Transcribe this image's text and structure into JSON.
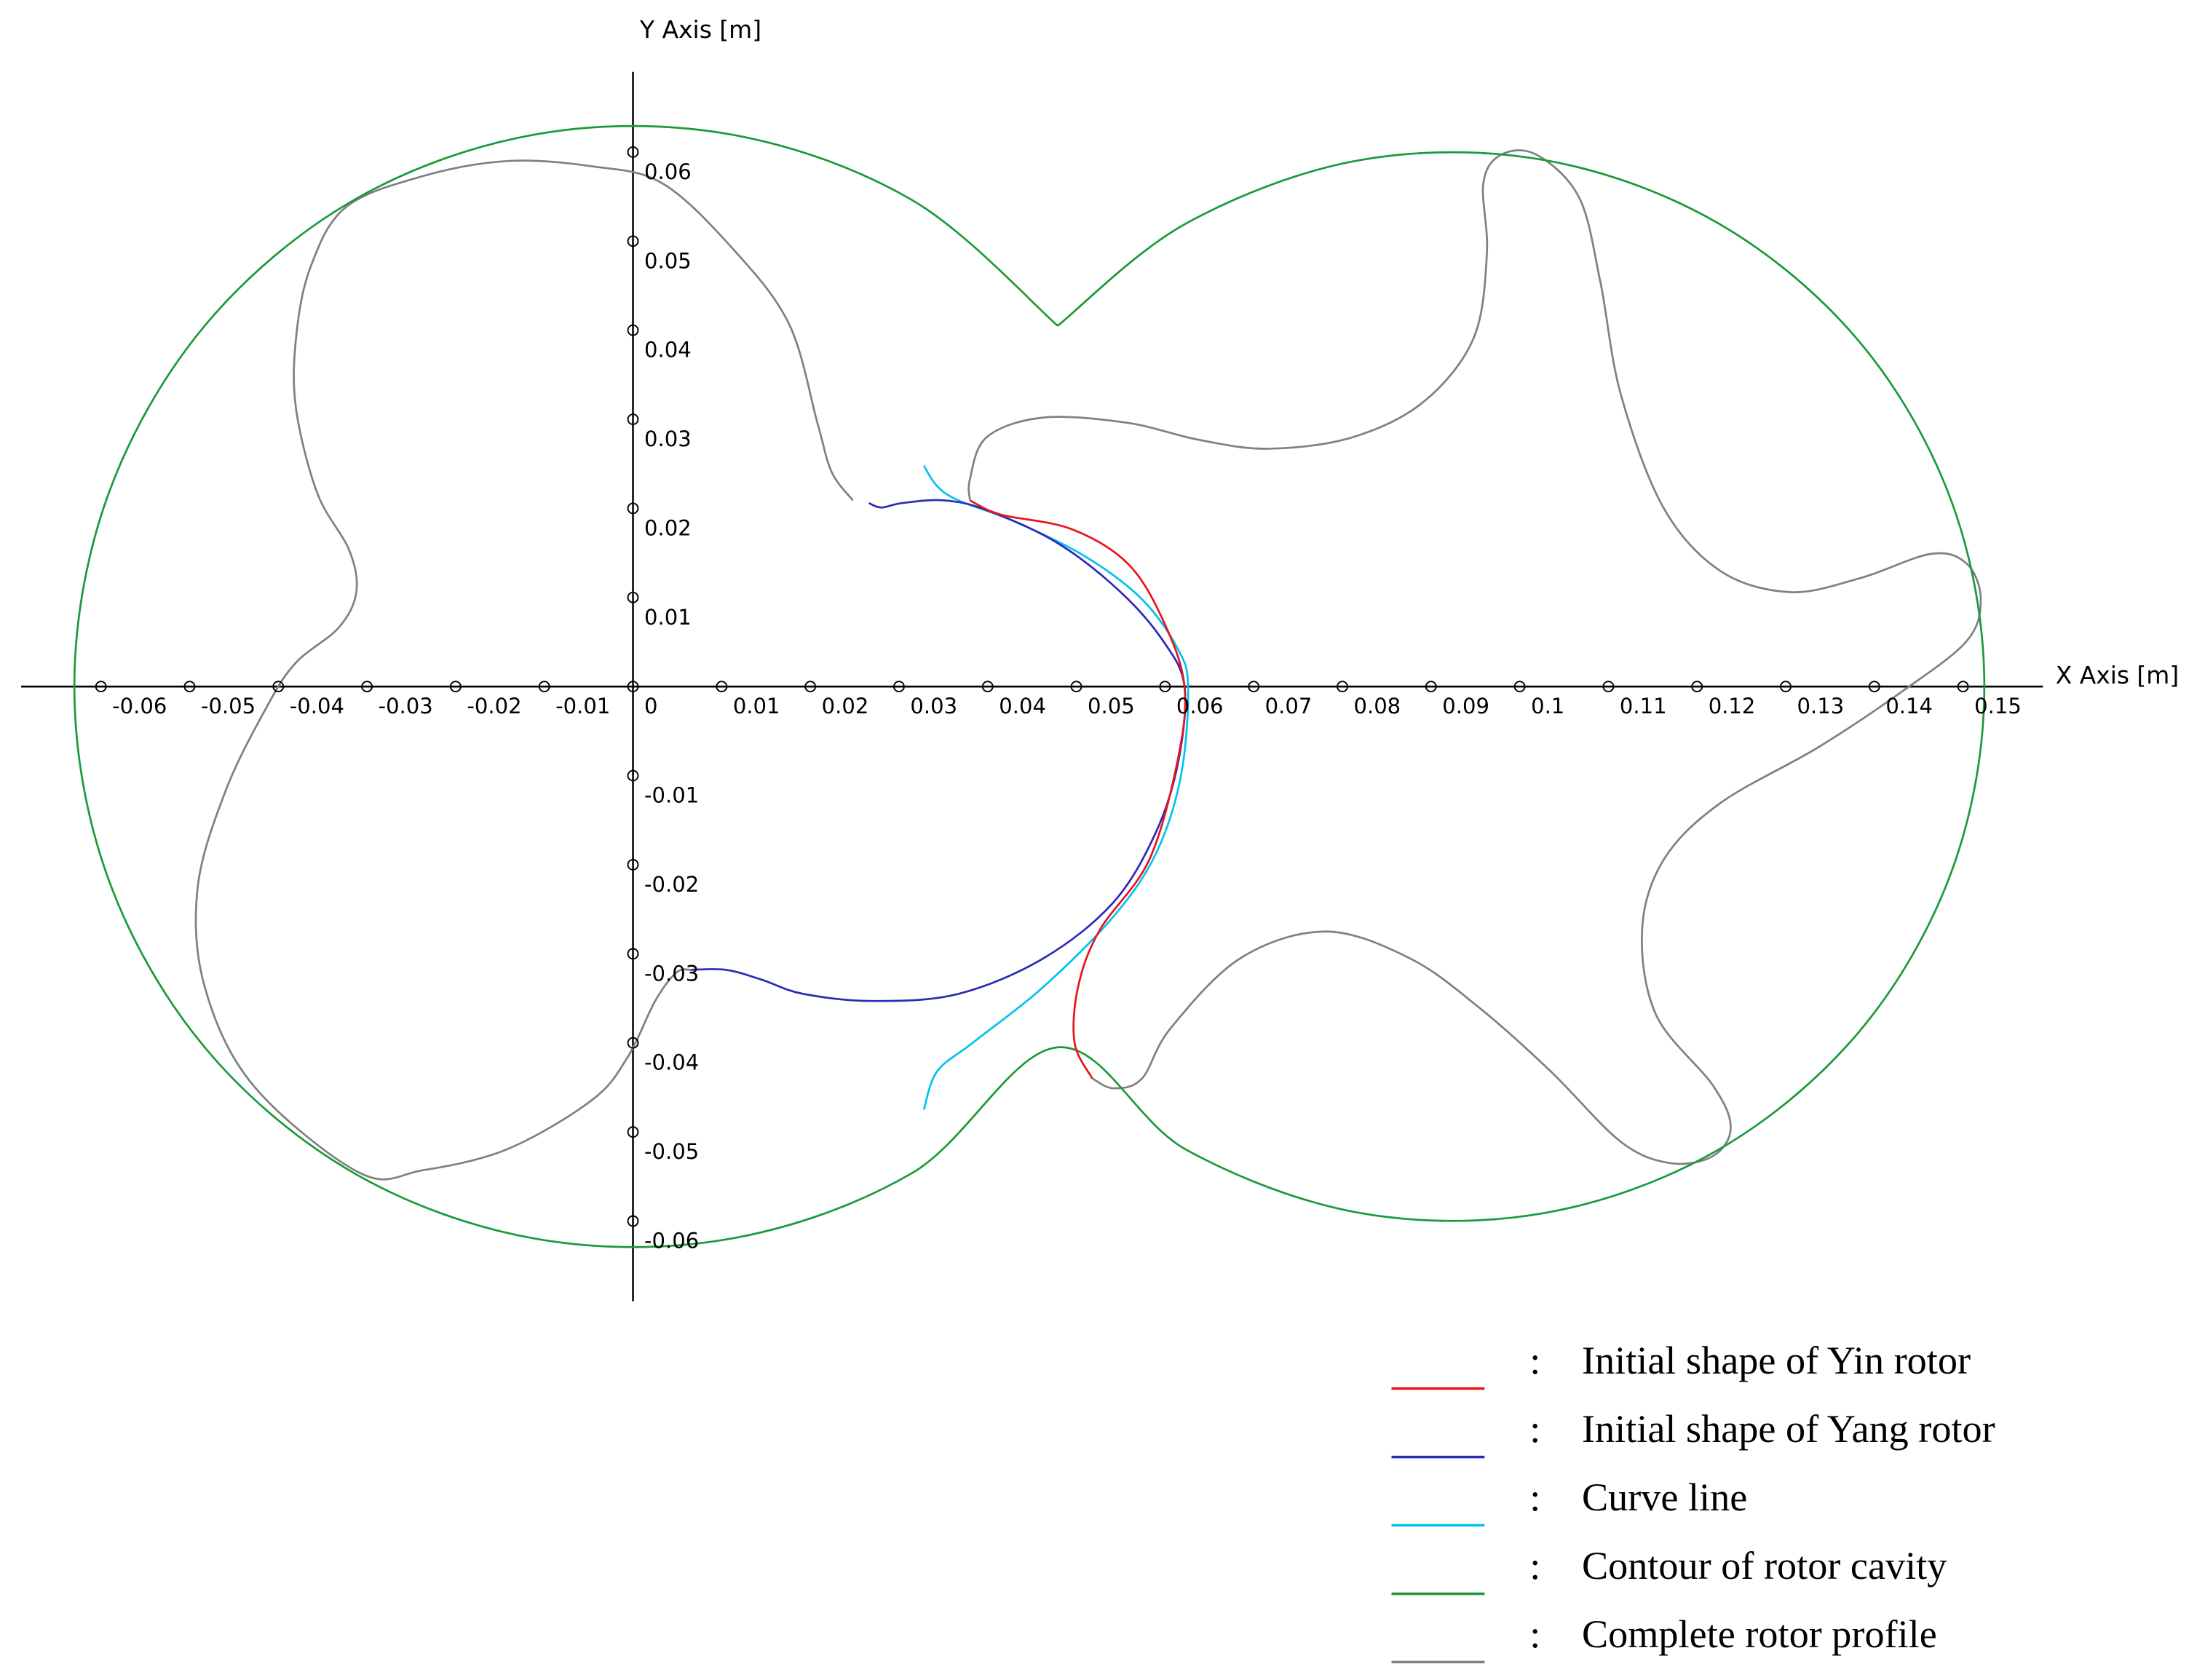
{
  "chart_data": {
    "type": "line",
    "xlabel": "X Axis [m]",
    "ylabel": "Y Axis [m]",
    "xlim": [
      -0.069,
      0.159
    ],
    "ylim": [
      -0.069,
      0.069
    ],
    "xticks": [
      -0.06,
      -0.05,
      -0.04,
      -0.03,
      -0.02,
      -0.01,
      0,
      0.01,
      0.02,
      0.03,
      0.04,
      0.05,
      0.06,
      0.07,
      0.08,
      0.09,
      0.1,
      0.11,
      0.12,
      0.13,
      0.14,
      0.15
    ],
    "yticks": [
      -0.06,
      -0.05,
      -0.04,
      -0.03,
      -0.02,
      -0.01,
      0.01,
      0.02,
      0.03,
      0.04,
      0.05,
      0.06
    ],
    "grid": false,
    "legend_position": "bottom-right",
    "legend_separator": ":",
    "series": [
      {
        "name": "Initial shape of Yin rotor",
        "color": "#e8141c",
        "x": [
          0.038,
          0.0415,
          0.0494,
          0.0558,
          0.0598,
          0.0622,
          0.0614,
          0.0582,
          0.0526,
          0.0502,
          0.0498,
          0.0518
        ],
        "values": [
          0.0209,
          0.0193,
          0.0177,
          0.0138,
          0.0074,
          0,
          -0.0084,
          -0.0195,
          -0.0274,
          -0.0337,
          -0.04,
          -0.044
        ]
      },
      {
        "name": "Initial shape of Yang rotor",
        "color": "#2b2bb8",
        "x": [
          0.0266,
          0.028,
          0.0304,
          0.0351,
          0.0399,
          0.0479,
          0.055,
          0.0598,
          0.0622,
          0.0615,
          0.059,
          0.0542,
          0.0463,
          0.0367,
          0.0272,
          0.0192,
          0.0145,
          0.0105,
          0.0065
        ],
        "values": [
          0.0206,
          0.0201,
          0.0206,
          0.0209,
          0.0198,
          0.0161,
          0.0106,
          0.0051,
          0,
          -0.0084,
          -0.0163,
          -0.0242,
          -0.0305,
          -0.0345,
          -0.0353,
          -0.0345,
          -0.0329,
          -0.0318,
          -0.0318
        ]
      },
      {
        "name": "Curve line",
        "color": "#00c4f0",
        "x": [
          0.0328,
          0.0343,
          0.0367,
          0.0431,
          0.051,
          0.0574,
          0.0614,
          0.0626,
          0.0618,
          0.059,
          0.0542,
          0.0463,
          0.0383,
          0.0343,
          0.0328
        ],
        "values": [
          0.0248,
          0.0225,
          0.0209,
          0.0185,
          0.0146,
          0.0098,
          0.0043,
          0,
          -0.01,
          -0.0187,
          -0.0258,
          -0.0337,
          -0.04,
          -0.0432,
          -0.0475
        ]
      },
      {
        "name": "Contour of rotor cavity",
        "color": "#1a9a3a",
        "x": [
          0.0479,
          0.0315,
          0.0109,
          -0.0109,
          -0.0315,
          -0.0483,
          -0.0592,
          -0.063,
          -0.0592,
          -0.0483,
          -0.0315,
          -0.0109,
          0.0109,
          0.0315,
          0.0479,
          0.0624,
          0.082,
          0.1028,
          0.1224,
          0.1384,
          0.1488,
          0.1524,
          0.1488,
          0.1384,
          0.1224,
          0.1028,
          0.082,
          0.0624,
          0.0479
        ],
        "values": [
          0.0405,
          0.0546,
          0.062,
          0.062,
          0.0546,
          0.0405,
          0.0215,
          0,
          -0.0215,
          -0.0405,
          -0.0546,
          -0.062,
          -0.062,
          -0.0546,
          -0.0405,
          -0.052,
          -0.0591,
          -0.0591,
          -0.052,
          -0.0386,
          -0.0205,
          0,
          0.0205,
          0.0386,
          0.052,
          0.0591,
          0.0591,
          0.052,
          0.0405
        ]
      },
      {
        "name": "Complete rotor profile",
        "color": "#808080",
        "x": [
          0.0248,
          0.0224,
          0.0208,
          0.0176,
          0.0113,
          0.0033,
          -0.0046,
          -0.0141,
          -0.0237,
          -0.0324,
          -0.0364,
          -0.038,
          -0.038,
          -0.0356,
          -0.032,
          -0.0312,
          -0.0332,
          -0.038,
          -0.0412,
          -0.0459,
          -0.0491,
          -0.0483,
          -0.0428,
          -0.0308,
          -0.0237,
          -0.0141,
          -0.0046,
          -0.0006,
          0.0025,
          0.0049,
          0.0065,
          null,
          0.038,
          0.038,
          0.0399,
          0.0463,
          0.0558,
          0.0638,
          0.0717,
          0.0812,
          0.0892,
          0.0948,
          0.0963,
          0.0959,
          0.0979,
          0.1019,
          0.1067,
          0.1091,
          0.1114,
          0.1162,
          0.1226,
          0.1305,
          0.1385,
          0.1464,
          0.1504,
          0.152,
          0.1504,
          0.1432,
          0.1337,
          0.1226,
          0.1162,
          0.1138,
          0.1154,
          0.1218,
          0.1238,
          0.1218,
          0.117,
          0.1114,
          0.1035,
          0.0955,
          0.0876,
          0.0781,
          0.0685,
          0.0606,
          0.0574,
          0.0542,
          0.0518
        ],
        "values": [
          0.0209,
          0.0241,
          0.0296,
          0.0407,
          0.0491,
          0.0565,
          0.0584,
          0.059,
          0.0573,
          0.0538,
          0.047,
          0.0391,
          0.0312,
          0.0217,
          0.0153,
          0.0106,
          0.0066,
          0.0027,
          -0.0021,
          -0.0116,
          -0.0226,
          -0.0337,
          -0.0448,
          -0.0546,
          -0.0543,
          -0.0519,
          -0.0464,
          -0.0416,
          -0.0353,
          -0.0321,
          -0.0318,
          null,
          0.0209,
          0.0233,
          0.028,
          0.0302,
          0.0296,
          0.0277,
          0.0267,
          0.028,
          0.032,
          0.0391,
          0.0486,
          0.0565,
          0.0597,
          0.0597,
          0.0549,
          0.0454,
          0.0328,
          0.0201,
          0.013,
          0.0106,
          0.0122,
          0.0149,
          0.0138,
          0.0098,
          0.0051,
          -0.0005,
          -0.0068,
          -0.0131,
          -0.0195,
          -0.0274,
          -0.0369,
          -0.0448,
          -0.0495,
          -0.0527,
          -0.0535,
          -0.0511,
          -0.0432,
          -0.0361,
          -0.0305,
          -0.0275,
          -0.0305,
          -0.0384,
          -0.044,
          -0.0451,
          -0.044
        ]
      }
    ]
  }
}
